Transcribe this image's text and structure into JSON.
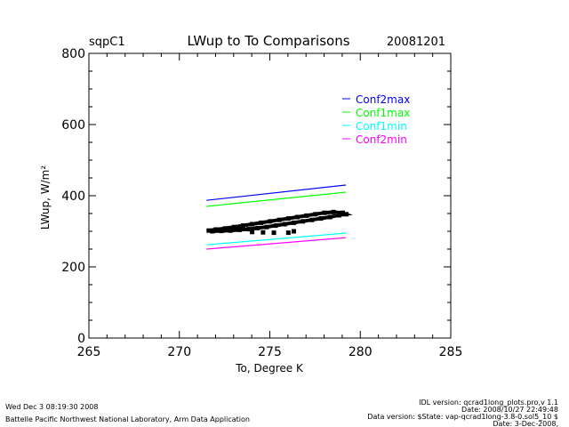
{
  "header": {
    "site": "sqpC1",
    "date": "20081201"
  },
  "footer": {
    "left": [
      "Wed Dec  3 08:19:30 2008",
      "Battelle Pacific Northwest National Laboratory, Arm Data Application"
    ],
    "right": [
      "IDL version: qcrad1long_plots.pro,v 1.1",
      "Date: 2008/10/27 22:49:48",
      "Data version: $State: vap-qcrad1long-3.8-0.sol5_10 $",
      "Date: 3-Dec-2008,"
    ]
  },
  "chart_data": {
    "type": "line",
    "title": "LWup to To Comparisons",
    "xlabel": "To, Degree K",
    "ylabel": "LWup, W/m²",
    "xlim": [
      265,
      285
    ],
    "ylim": [
      0,
      800
    ],
    "xticks": [
      "265",
      "270",
      "275",
      "280",
      "285"
    ],
    "yticks": [
      "0",
      "200",
      "400",
      "600",
      "800"
    ],
    "grid": false,
    "legend_placement": "top-right",
    "series": [
      {
        "name": "Conf2max",
        "color": "#0000ff",
        "x": [
          271.5,
          279.2
        ],
        "y": [
          387,
          430
        ]
      },
      {
        "name": "Conf1max",
        "color": "#00ff00",
        "x": [
          271.5,
          279.2
        ],
        "y": [
          370,
          410
        ]
      },
      {
        "name": "Conf1min",
        "color": "#00ffff",
        "x": [
          271.5,
          279.2
        ],
        "y": [
          262,
          295
        ]
      },
      {
        "name": "Conf2min",
        "color": "#ff00ff",
        "x": [
          271.5,
          279.2
        ],
        "y": [
          250,
          282
        ]
      }
    ],
    "scatter": {
      "color": "#000000",
      "x": [
        271.6,
        272.0,
        272.5,
        273.0,
        273.5,
        274.0,
        274.5,
        275.0,
        275.5,
        276.0,
        276.5,
        277.0,
        277.5,
        278.0,
        278.5,
        279.0,
        279.2,
        278.8,
        278.3,
        277.8,
        277.3,
        276.8,
        276.3,
        275.8,
        275.3,
        274.8,
        274.3,
        273.8,
        273.3,
        272.8,
        272.3,
        271.8,
        274.0,
        274.6,
        275.2,
        276.0,
        276.3
      ],
      "y": [
        302,
        305,
        308,
        312,
        316,
        320,
        324,
        328,
        332,
        336,
        340,
        344,
        348,
        352,
        354,
        352,
        348,
        345,
        340,
        336,
        332,
        328,
        324,
        320,
        316,
        312,
        309,
        306,
        304,
        302,
        301,
        300,
        298,
        297,
        296,
        296,
        300
      ]
    }
  }
}
